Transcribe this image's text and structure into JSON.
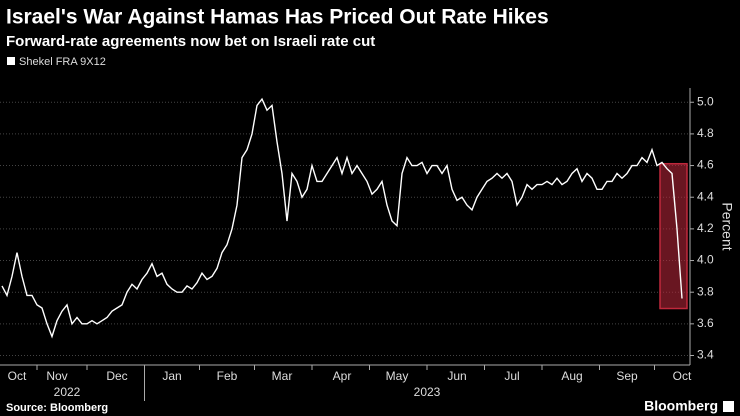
{
  "chart_data": {
    "type": "line",
    "title": "Israel's War Against Hamas Has Priced Out Rate Hikes",
    "subtitle": "Forward-rate agreements now bet on Israeli rate cut",
    "y_label": "Percent",
    "source": "Source: Bloomberg",
    "brand": "Bloomberg",
    "year_labels": [
      "2022",
      "2023"
    ],
    "categories": [
      null,
      null,
      null,
      "Oct",
      null,
      null,
      null,
      null,
      null,
      null,
      null,
      "Nov",
      null,
      null,
      null,
      null,
      null,
      null,
      null,
      null,
      null,
      null,
      null,
      "Dec",
      null,
      null,
      null,
      null,
      null,
      null,
      null,
      null,
      null,
      null,
      "Jan",
      null,
      null,
      null,
      null,
      null,
      null,
      null,
      null,
      null,
      null,
      "Feb",
      null,
      null,
      null,
      null,
      null,
      null,
      null,
      null,
      null,
      null,
      "Mar",
      null,
      null,
      null,
      null,
      null,
      null,
      null,
      null,
      null,
      null,
      null,
      "Apr",
      null,
      null,
      null,
      null,
      null,
      null,
      null,
      null,
      null,
      null,
      "May",
      null,
      null,
      null,
      null,
      null,
      null,
      null,
      null,
      null,
      null,
      null,
      "Jun",
      null,
      null,
      null,
      null,
      null,
      null,
      null,
      null,
      null,
      null,
      "Jul",
      null,
      null,
      null,
      null,
      null,
      null,
      null,
      null,
      null,
      null,
      null,
      "Aug",
      null,
      null,
      null,
      null,
      null,
      null,
      null,
      null,
      null,
      null,
      "Sep",
      null,
      null,
      null,
      null,
      null,
      null,
      null,
      null,
      null,
      null,
      "Oct"
    ],
    "series": [
      {
        "name": "Shekel FRA 9X12",
        "color": "#ffffff",
        "values": [
          3.84,
          3.78,
          3.9,
          4.05,
          3.9,
          3.78,
          3.78,
          3.72,
          3.7,
          3.6,
          3.52,
          3.62,
          3.68,
          3.72,
          3.6,
          3.64,
          3.6,
          3.6,
          3.62,
          3.6,
          3.62,
          3.64,
          3.68,
          3.7,
          3.72,
          3.8,
          3.85,
          3.82,
          3.88,
          3.92,
          3.98,
          3.9,
          3.92,
          3.85,
          3.82,
          3.8,
          3.8,
          3.84,
          3.82,
          3.86,
          3.92,
          3.88,
          3.9,
          3.95,
          4.05,
          4.1,
          4.2,
          4.35,
          4.65,
          4.7,
          4.8,
          4.98,
          5.02,
          4.95,
          4.98,
          4.75,
          4.55,
          4.25,
          4.55,
          4.5,
          4.4,
          4.45,
          4.6,
          4.5,
          4.5,
          4.55,
          4.6,
          4.65,
          4.55,
          4.65,
          4.55,
          4.6,
          4.55,
          4.5,
          4.42,
          4.45,
          4.5,
          4.35,
          4.25,
          4.22,
          4.55,
          4.65,
          4.6,
          4.6,
          4.62,
          4.55,
          4.6,
          4.6,
          4.55,
          4.6,
          4.45,
          4.38,
          4.4,
          4.35,
          4.32,
          4.4,
          4.45,
          4.5,
          4.52,
          4.55,
          4.52,
          4.55,
          4.5,
          4.35,
          4.4,
          4.48,
          4.45,
          4.48,
          4.48,
          4.5,
          4.48,
          4.52,
          4.48,
          4.5,
          4.55,
          4.58,
          4.5,
          4.55,
          4.52,
          4.45,
          4.45,
          4.5,
          4.5,
          4.55,
          4.52,
          4.55,
          4.6,
          4.6,
          4.65,
          4.62,
          4.7,
          4.6,
          4.62,
          4.58,
          4.55,
          4.2,
          3.76
        ]
      }
    ],
    "ylim": [
      3.34,
      5.09
    ],
    "yticks": [
      3.4,
      3.6,
      3.8,
      {
        "value": 4,
        "label": "4.0"
      },
      4.2,
      4.4,
      4.6,
      4.8,
      {
        "value": 5,
        "label": "5.0"
      }
    ],
    "grid": true,
    "highlight_color": "#c0283c"
  }
}
